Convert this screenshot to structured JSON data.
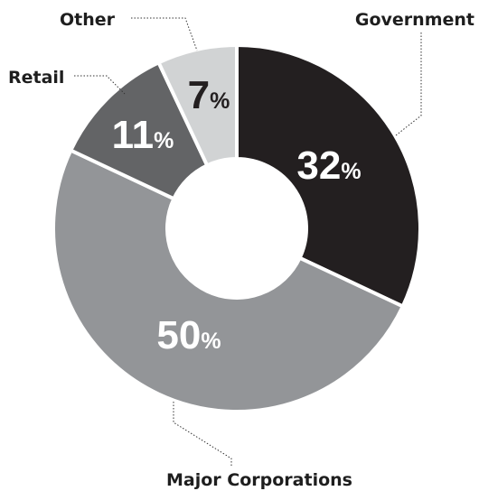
{
  "chart_data": {
    "type": "pie",
    "donut": true,
    "percent_sign": "%",
    "slices": [
      {
        "label": "Government",
        "value": 32,
        "color": "#231f20",
        "text_color": "#ffffff"
      },
      {
        "label": "Major Corporations",
        "value": 50,
        "color": "#939598",
        "text_color": "#ffffff"
      },
      {
        "label": "Retail",
        "value": 11,
        "color": "#636466",
        "text_color": "#ffffff"
      },
      {
        "label": "Other",
        "value": 7,
        "color": "#d1d3d4",
        "text_color": "#231f20"
      }
    ]
  }
}
